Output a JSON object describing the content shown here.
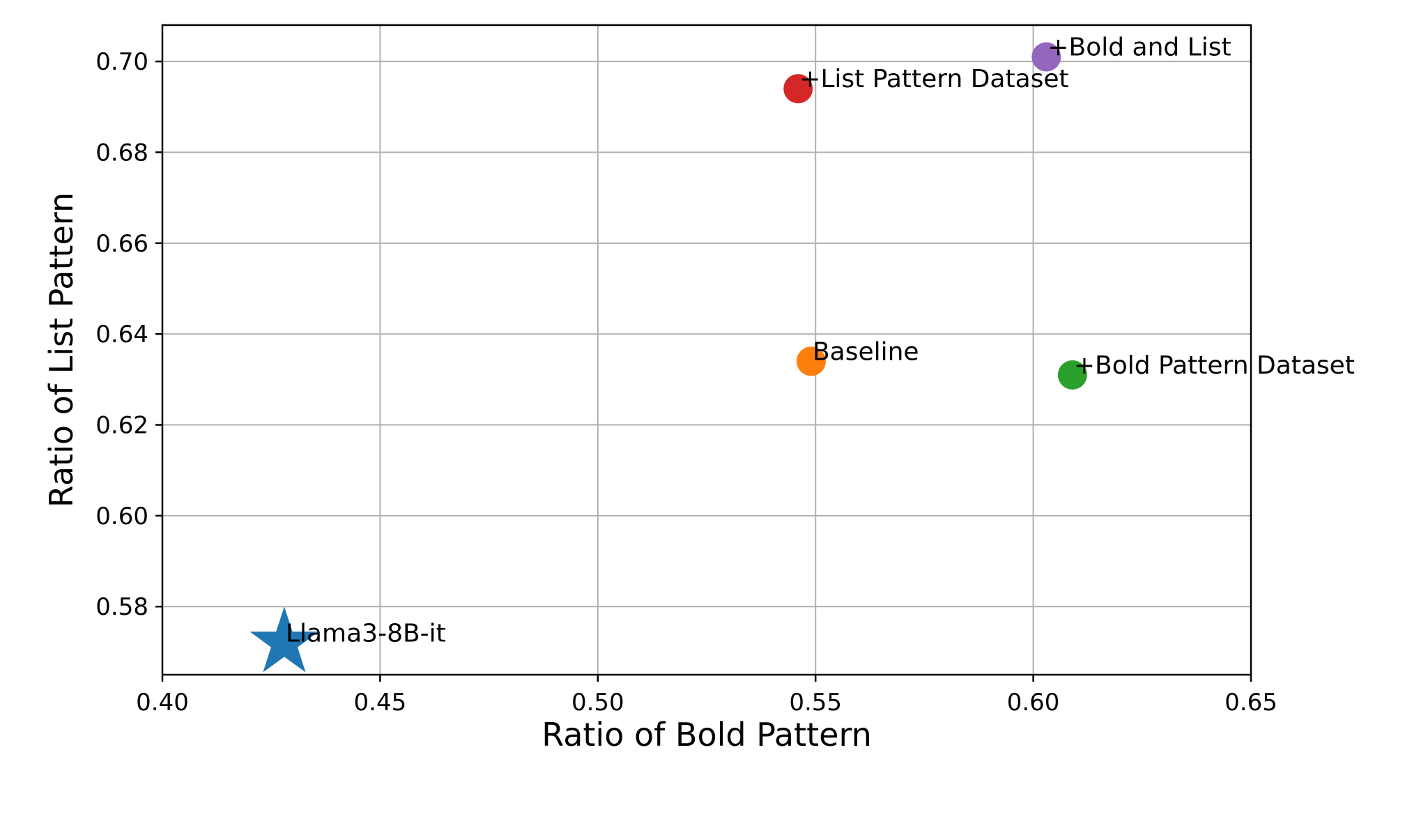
{
  "chart_data": {
    "type": "scatter",
    "title": "",
    "xlabel": "Ratio of Bold Pattern",
    "ylabel": "Ratio of List Pattern",
    "xlim": [
      0.4,
      0.65
    ],
    "ylim": [
      0.565,
      0.708
    ],
    "xticks": [
      0.4,
      0.45,
      0.5,
      0.55,
      0.6,
      0.65
    ],
    "xtick_labels": [
      "0.40",
      "0.45",
      "0.50",
      "0.55",
      "0.60",
      "0.65"
    ],
    "yticks": [
      0.58,
      0.6,
      0.62,
      0.64,
      0.66,
      0.68,
      0.7
    ],
    "ytick_labels": [
      "0.58",
      "0.60",
      "0.62",
      "0.64",
      "0.66",
      "0.68",
      "0.70"
    ],
    "grid": true,
    "points": [
      {
        "label": "Llama3-8B-it",
        "x": 0.428,
        "y": 0.572,
        "color": "#1f77b4",
        "marker": "star"
      },
      {
        "label": "Baseline",
        "x": 0.549,
        "y": 0.634,
        "color": "#ff7f0e",
        "marker": "circle"
      },
      {
        "label": "+Bold Pattern Dataset",
        "x": 0.609,
        "y": 0.631,
        "color": "#2ca02c",
        "marker": "circle"
      },
      {
        "label": "+List Pattern Dataset",
        "x": 0.546,
        "y": 0.694,
        "color": "#d62728",
        "marker": "circle"
      },
      {
        "label": "+Bold and List",
        "x": 0.603,
        "y": 0.701,
        "color": "#9467bd",
        "marker": "circle"
      }
    ]
  }
}
